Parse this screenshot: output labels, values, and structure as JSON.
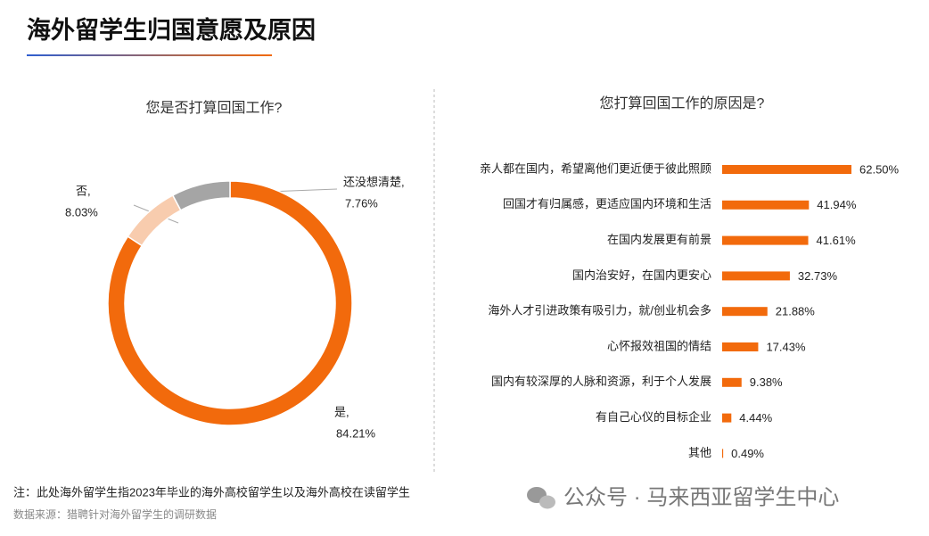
{
  "title": "海外留学生归国意愿及原因",
  "charts": [
    {
      "type": "pie",
      "title": "您是否打算回国工作?",
      "categories": [
        "是,",
        "否,",
        "还没想清楚,"
      ],
      "values": [
        84.21,
        8.03,
        7.76
      ],
      "value_labels": [
        "84.21%",
        "8.03%",
        "7.76%"
      ],
      "colors": [
        "#f26a0c",
        "#f8ccae",
        "#a5a5a5"
      ]
    },
    {
      "type": "hbar",
      "title": "您打算回国工作的原因是?",
      "categories": [
        "亲人都在国内，希望离他们更近便于彼此照顾",
        "回国才有归属感，更适应国内环境和生活",
        "在国内发展更有前景",
        "国内治安好，在国内更安心",
        "海外人才引进政策有吸引力，就/创业机会多",
        "心怀报效祖国的情结",
        "国内有较深厚的人脉和资源，利于个人发展",
        "有自己心仪的目标企业",
        "其他"
      ],
      "values": [
        62.5,
        41.94,
        41.61,
        32.73,
        21.88,
        17.43,
        9.38,
        4.44,
        0.49
      ],
      "value_labels": [
        "62.50%",
        "41.94%",
        "41.61%",
        "32.73%",
        "21.88%",
        "17.43%",
        "9.38%",
        "4.44%",
        "0.49%"
      ],
      "color": "#f26a0c"
    }
  ],
  "footnote": "注：此处海外留学生指2023年毕业的海外高校留学生以及海外高校在读留学生",
  "source": "数据来源：猎聘针对海外留学生的调研数据",
  "watermark": "公众号 · 马来西亚留学生中心"
}
